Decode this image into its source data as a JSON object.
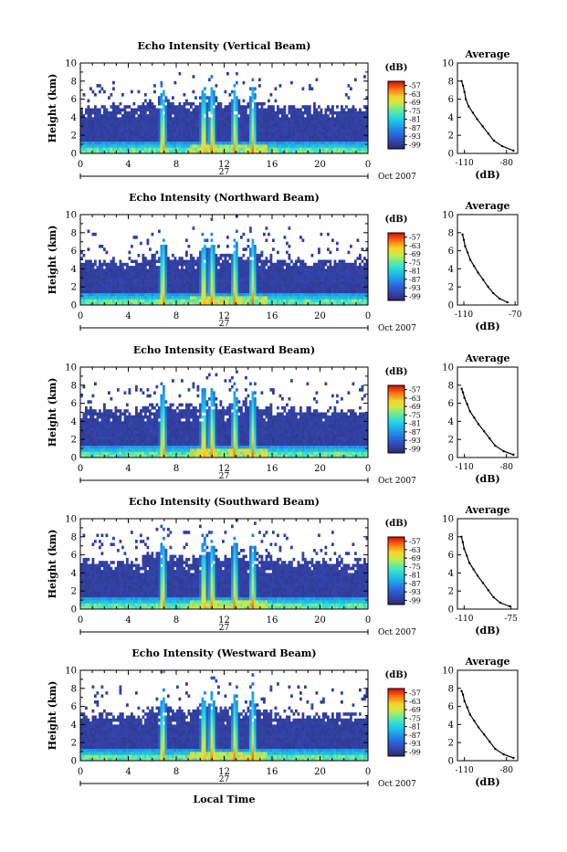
{
  "figure": {
    "x_axis_title": "Local Time",
    "date_label": "Oct 2007",
    "day_label": "27",
    "colorbar_unit": "(dB)",
    "average_title": "Average",
    "average_xlabel": "(dB)"
  },
  "chart_data": [
    {
      "type": "heatmap",
      "title": "Echo Intensity (Vertical Beam)",
      "ylabel": "Height (km)",
      "xlabel": "Local Time",
      "x_ticks": [
        "0",
        "4",
        "8",
        "12",
        "16",
        "20",
        "0"
      ],
      "xlim": [
        0,
        24
      ],
      "ylim": [
        0,
        10
      ],
      "y_ticks": [
        "0",
        "2",
        "4",
        "6",
        "8",
        "10"
      ],
      "colorbar_ticks": [
        "-57",
        "-63",
        "-69",
        "-75",
        "-81",
        "-87",
        "-93",
        "-99"
      ],
      "colorbar_range_db": [
        -102,
        -54
      ],
      "convective_bursts_hours": [
        6.8,
        10.2,
        10.9,
        12.8,
        14.3
      ],
      "echo_top_km": 5.2,
      "average_profile": {
        "x_ticks": [
          "-110",
          "-80"
        ],
        "xlim": [
          -115,
          -72
        ],
        "ylim": [
          0,
          10
        ],
        "db": [
          -112,
          -111,
          -110,
          -109,
          -107,
          -104,
          -101,
          -97,
          -93,
          -89,
          -83,
          -75
        ],
        "height_km": [
          8.0,
          7.5,
          6.8,
          6.0,
          5.2,
          4.5,
          3.8,
          3.0,
          2.2,
          1.4,
          0.8,
          0.3
        ]
      }
    },
    {
      "type": "heatmap",
      "title": "Echo Intensity (Northward Beam)",
      "ylabel": "Height (km)",
      "xlabel": "Local Time",
      "x_ticks": [
        "0",
        "4",
        "8",
        "12",
        "16",
        "20",
        "0"
      ],
      "xlim": [
        0,
        24
      ],
      "ylim": [
        0,
        10
      ],
      "y_ticks": [
        "0",
        "2",
        "4",
        "6",
        "8",
        "10"
      ],
      "colorbar_ticks": [
        "-57",
        "-63",
        "-69",
        "-75",
        "-81",
        "-87",
        "-93",
        "-99"
      ],
      "colorbar_range_db": [
        -102,
        -54
      ],
      "convective_bursts_hours": [
        6.8,
        10.2,
        10.9,
        12.8,
        14.3
      ],
      "echo_top_km": 5.0,
      "average_profile": {
        "x_ticks": [
          "-110",
          "-70"
        ],
        "xlim": [
          -115,
          -68
        ],
        "ylim": [
          0,
          10
        ],
        "db": [
          -111,
          -110,
          -109,
          -107,
          -105,
          -102,
          -99,
          -95,
          -91,
          -87,
          -82,
          -76
        ],
        "height_km": [
          7.8,
          7.2,
          6.5,
          5.8,
          5.0,
          4.3,
          3.6,
          2.8,
          2.0,
          1.3,
          0.7,
          0.3
        ]
      }
    },
    {
      "type": "heatmap",
      "title": "Echo Intensity (Eastward Beam)",
      "ylabel": "Height (km)",
      "xlabel": "Local Time",
      "x_ticks": [
        "0",
        "4",
        "8",
        "12",
        "16",
        "20",
        "0"
      ],
      "xlim": [
        0,
        24
      ],
      "ylim": [
        0,
        10
      ],
      "y_ticks": [
        "0",
        "2",
        "4",
        "6",
        "8",
        "10"
      ],
      "colorbar_ticks": [
        "-57",
        "-63",
        "-69",
        "-75",
        "-81",
        "-87",
        "-93",
        "-99"
      ],
      "colorbar_range_db": [
        -102,
        -54
      ],
      "convective_bursts_hours": [
        6.8,
        10.2,
        10.9,
        12.8,
        14.3
      ],
      "echo_top_km": 5.3,
      "average_profile": {
        "x_ticks": [
          "-110",
          "-80"
        ],
        "xlim": [
          -115,
          -72
        ],
        "ylim": [
          0,
          10
        ],
        "db": [
          -112,
          -111,
          -110,
          -108,
          -106,
          -103,
          -100,
          -96,
          -92,
          -88,
          -82,
          -75
        ],
        "height_km": [
          7.6,
          7.2,
          6.6,
          5.9,
          5.1,
          4.4,
          3.7,
          2.9,
          2.1,
          1.3,
          0.7,
          0.3
        ]
      }
    },
    {
      "type": "heatmap",
      "title": "Echo Intensity (Southward Beam)",
      "ylabel": "Height (km)",
      "xlabel": "Local Time",
      "x_ticks": [
        "0",
        "4",
        "8",
        "12",
        "16",
        "20",
        "0"
      ],
      "xlim": [
        0,
        24
      ],
      "ylim": [
        0,
        10
      ],
      "y_ticks": [
        "0",
        "2",
        "4",
        "6",
        "8",
        "10"
      ],
      "colorbar_ticks": [
        "-57",
        "-63",
        "-69",
        "-75",
        "-81",
        "-87",
        "-93",
        "-99"
      ],
      "colorbar_range_db": [
        -102,
        -54
      ],
      "convective_bursts_hours": [
        6.8,
        10.2,
        10.9,
        12.8,
        14.3
      ],
      "echo_top_km": 5.4,
      "average_profile": {
        "x_ticks": [
          "-110",
          "-75"
        ],
        "xlim": [
          -115,
          -70
        ],
        "ylim": [
          0,
          10
        ],
        "db": [
          -112,
          -111,
          -110,
          -108,
          -106,
          -103,
          -100,
          -96,
          -92,
          -88,
          -83,
          -76
        ],
        "height_km": [
          8.0,
          7.4,
          6.7,
          5.9,
          5.1,
          4.4,
          3.7,
          2.9,
          2.1,
          1.3,
          0.7,
          0.3
        ]
      }
    },
    {
      "type": "heatmap",
      "title": "Echo Intensity (Westward Beam)",
      "ylabel": "Height (km)",
      "xlabel": "Local Time",
      "x_ticks": [
        "0",
        "4",
        "8",
        "12",
        "16",
        "20",
        "0"
      ],
      "xlim": [
        0,
        24
      ],
      "ylim": [
        0,
        10
      ],
      "y_ticks": [
        "0",
        "2",
        "4",
        "6",
        "8",
        "10"
      ],
      "colorbar_ticks": [
        "-57",
        "-63",
        "-69",
        "-75",
        "-81",
        "-87",
        "-93",
        "-99"
      ],
      "colorbar_range_db": [
        -102,
        -54
      ],
      "convective_bursts_hours": [
        6.8,
        10.2,
        10.9,
        12.8,
        14.3
      ],
      "echo_top_km": 5.2,
      "average_profile": {
        "x_ticks": [
          "-110",
          "-80"
        ],
        "xlim": [
          -115,
          -72
        ],
        "ylim": [
          0,
          10
        ],
        "db": [
          -112,
          -111,
          -110,
          -108,
          -106,
          -103,
          -100,
          -96,
          -92,
          -88,
          -82,
          -75
        ],
        "height_km": [
          7.7,
          7.3,
          6.6,
          5.9,
          5.1,
          4.4,
          3.7,
          2.9,
          2.1,
          1.3,
          0.7,
          0.3
        ]
      }
    }
  ]
}
